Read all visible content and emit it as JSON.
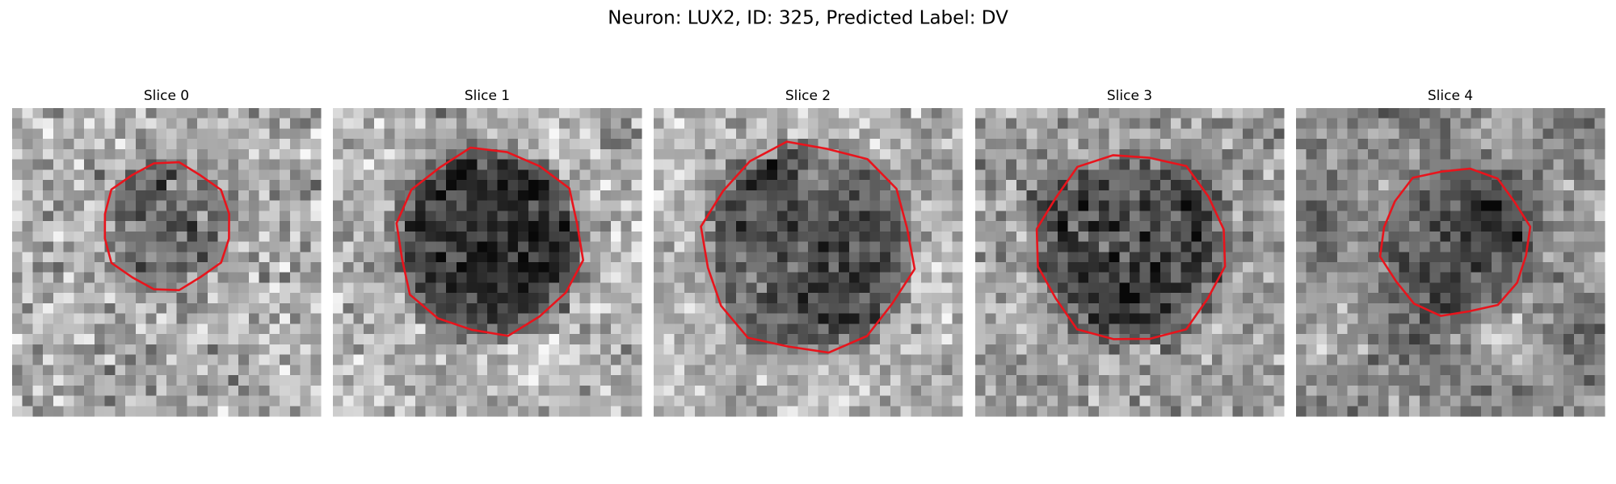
{
  "figure": {
    "title": "Neuron: LUX2, ID: 325, Predicted Label: DV",
    "panels": [
      {
        "title": "Slice 0"
      },
      {
        "title": "Slice 1"
      },
      {
        "title": "Slice 2"
      },
      {
        "title": "Slice 3"
      },
      {
        "title": "Slice 4"
      }
    ]
  }
}
